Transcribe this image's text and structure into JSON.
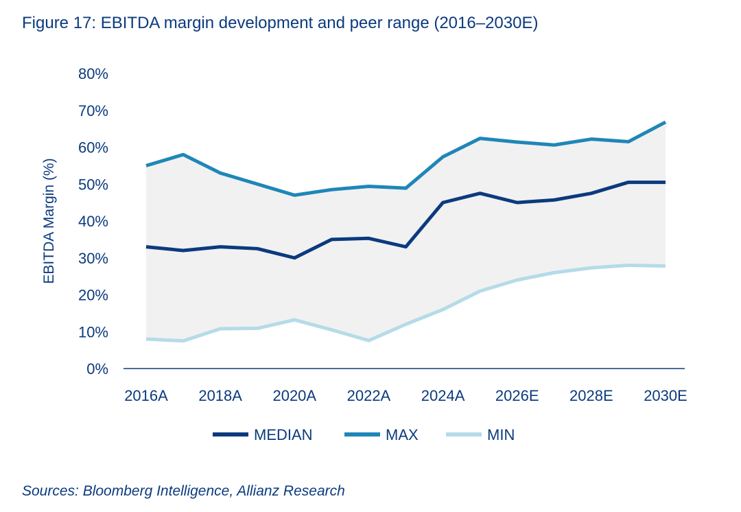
{
  "title": "Figure 17: EBITDA margin development and peer range (2016–2030E)",
  "source": "Sources: Bloomberg Intelligence, Allianz Research",
  "colors": {
    "text": "#0b3a7e",
    "median": "#0b3a7e",
    "max": "#1f86b8",
    "min": "#b5dbe8",
    "range_fill": "#f1f1f2",
    "axis": "#0b3a7e"
  },
  "chart_data": {
    "type": "line",
    "title": "Figure 17: EBITDA margin development and peer range (2016–2030E)",
    "xlabel": "",
    "ylabel": "EBITDA Margin (%)",
    "ylim": [
      0,
      80
    ],
    "yticks": [
      "0%",
      "10%",
      "20%",
      "30%",
      "40%",
      "50%",
      "60%",
      "70%",
      "80%"
    ],
    "ytick_values": [
      0,
      10,
      20,
      30,
      40,
      50,
      60,
      70,
      80
    ],
    "x": [
      "2016A",
      "2017A",
      "2018A",
      "2019A",
      "2020A",
      "2021A",
      "2022A",
      "2023A",
      "2024A",
      "2025E",
      "2026E",
      "2027E",
      "2028E",
      "2029E",
      "2030E"
    ],
    "xtick_labels": [
      "2016A",
      "2018A",
      "2020A",
      "2022A",
      "2024A",
      "2026E",
      "2028E",
      "2030E"
    ],
    "grid": false,
    "legend_position": "bottom",
    "shaded_range": "between MIN and MAX",
    "series": [
      {
        "name": "MEDIAN",
        "values": [
          33,
          32,
          33,
          32.5,
          30,
          35,
          35.3,
          33,
          45,
          47.5,
          45,
          45.7,
          47.5,
          50.5,
          50.5
        ]
      },
      {
        "name": "MAX",
        "values": [
          55,
          58,
          53,
          50,
          47,
          48.5,
          49.4,
          48.9,
          57.4,
          62.4,
          61.4,
          60.6,
          62.2,
          61.5,
          66.8
        ]
      },
      {
        "name": "MIN",
        "values": [
          8,
          7.5,
          10.8,
          10.9,
          13.2,
          10.5,
          7.6,
          12,
          16,
          21,
          24,
          26,
          27.3,
          28,
          27.8
        ]
      }
    ]
  }
}
